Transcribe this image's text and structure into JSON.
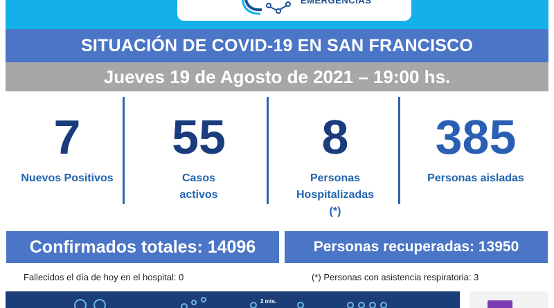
{
  "header": {
    "logo_text": "EMERGENCIAS",
    "brand_color": "#14b0ea"
  },
  "title": "SITUACIÓN DE COVID-19 EN SAN FRANCISCO",
  "date_line": "Jueves 19 de Agosto de 2021 – 19:00 hs.",
  "stats": [
    {
      "value": "7",
      "label": "Nuevos Positivos"
    },
    {
      "value": "55",
      "label": "Casos\nactivos"
    },
    {
      "value": "8",
      "label": "Personas\nHospitalizadas\n(*)"
    },
    {
      "value": "385",
      "label": "Personas aisladas"
    }
  ],
  "totals": {
    "confirmed": "Confirmados totales: 14096",
    "recovered": "Personas recuperadas: 13950"
  },
  "notes": {
    "deaths": "Fallecidos el día de hoy en el hospital: 0",
    "respiratory": "(*) Personas con asistencia respiratoria: 3"
  },
  "footer": {
    "distance_label": "2 mts."
  },
  "colors": {
    "title_bar": "#4b75c6",
    "date_bar": "#a7a7a7",
    "stat_number": "#1a3c7d",
    "stat_label": "#2064ae",
    "footer": "#1b3e79",
    "accent_purple": "#7a3bb3"
  }
}
